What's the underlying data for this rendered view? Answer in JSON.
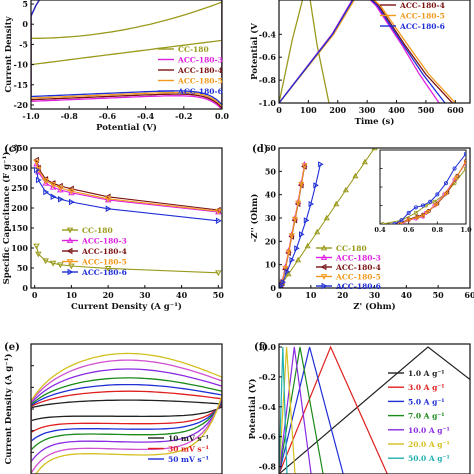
{
  "chart_data": [
    {
      "id": "a",
      "panel_label": "",
      "type": "line",
      "xlabel": "Potential (V)",
      "ylabel": "Current Density",
      "xlim": [
        -1.0,
        0.0
      ],
      "ylim": [
        -21,
        6
      ],
      "xticks": [
        -1.0,
        -0.8,
        -0.6,
        -0.4,
        -0.2,
        0.0
      ],
      "xtick_labels": [
        "-1.0",
        "-0.8",
        "-0.6",
        "-0.4",
        "-0.2",
        "0.0"
      ],
      "yticks": [
        -20,
        -15,
        -10,
        -5,
        0,
        5
      ],
      "ytick_labels": [
        "-20",
        "-15",
        "-10",
        "-5",
        "0",
        "5"
      ],
      "legend_position": "lower-right",
      "series": [
        {
          "name": "CC-180",
          "color": "#9a9a1c",
          "marker": "none",
          "values_top": [
            6,
            6,
            6,
            6,
            6,
            6
          ],
          "values_bottom": [
            -10,
            -7,
            -6,
            -5,
            -4,
            -3
          ]
        },
        {
          "name": "ACC-180-3",
          "color": "#e020e0",
          "marker": "none",
          "values_top": [
            5,
            14,
            18,
            20,
            22,
            24
          ],
          "values_bottom": [
            -19.5,
            -20,
            -20,
            -20,
            -20,
            -20
          ]
        },
        {
          "name": "ACC-180-4",
          "color": "#7a1212",
          "marker": "none",
          "values_top": [
            5,
            14,
            18,
            20,
            22,
            24
          ],
          "values_bottom": [
            -19,
            -19.5,
            -19.5,
            -19.5,
            -19.5,
            -19.5
          ]
        },
        {
          "name": "ACC-180-5",
          "color": "#f29a1e",
          "marker": "none",
          "values_top": [
            5,
            14,
            18,
            20,
            22,
            24
          ],
          "values_bottom": [
            -18.5,
            -19,
            -19,
            -19,
            -19,
            -19
          ]
        },
        {
          "name": "ACC-180-6",
          "color": "#1f2fd6",
          "marker": "none",
          "values_top": [
            5,
            14,
            18,
            20,
            22,
            24
          ],
          "values_bottom": [
            -18,
            -18.5,
            -18.5,
            -18.5,
            -18.5,
            -18.5
          ]
        }
      ]
    },
    {
      "id": "b",
      "panel_label": "",
      "type": "line",
      "xlabel": "Time (s)",
      "ylabel": "Potential (V",
      "xlim": [
        0,
        650
      ],
      "ylim": [
        -1.0,
        -0.1
      ],
      "xticks": [
        0,
        100,
        200,
        300,
        400,
        500,
        600
      ],
      "xtick_labels": [
        "0",
        "100",
        "200",
        "300",
        "400",
        "500",
        "600"
      ],
      "yticks": [
        -1.0,
        -0.8,
        -0.6,
        -0.4
      ],
      "ytick_labels": [
        "-1.0",
        "-0.8",
        "-0.6",
        "-0.4"
      ],
      "legend_position": "top-right",
      "legend_entries": [
        "ACC-180-4",
        "ACC-180-5",
        "ACC-180-6"
      ],
      "series": [
        {
          "name": "CC-180",
          "color": "#9a9a1c",
          "x": [
            0,
            45,
            90,
            100,
            130,
            170
          ],
          "y": [
            -1.0,
            -0.45,
            0.0,
            0.0,
            -0.5,
            -1.0
          ]
        },
        {
          "name": "ACC-180-3",
          "color": "#e020e0",
          "x": [
            0,
            90,
            180,
            272,
            330,
            420,
            478,
            545
          ],
          "y": [
            -1.0,
            -0.7,
            -0.4,
            0.0,
            -0.15,
            -0.5,
            -0.75,
            -1.0
          ]
        },
        {
          "name": "ACC-180-4",
          "color": "#7a1212",
          "x": [
            0,
            92,
            184,
            276,
            340,
            430,
            500,
            590
          ],
          "y": [
            -1.0,
            -0.7,
            -0.4,
            0.0,
            -0.15,
            -0.5,
            -0.75,
            -1.0
          ]
        },
        {
          "name": "ACC-180-5",
          "color": "#f29a1e",
          "x": [
            0,
            93,
            186,
            279,
            345,
            440,
            510,
            600
          ],
          "y": [
            -1.0,
            -0.7,
            -0.4,
            0.0,
            -0.15,
            -0.5,
            -0.75,
            -1.0
          ]
        },
        {
          "name": "ACC-180-6",
          "color": "#1f2fd6",
          "x": [
            0,
            91,
            182,
            274,
            335,
            425,
            490,
            565
          ],
          "y": [
            -1.0,
            -0.7,
            -0.4,
            0.0,
            -0.15,
            -0.5,
            -0.75,
            -1.0
          ]
        }
      ]
    },
    {
      "id": "c",
      "panel_label": "(c)",
      "type": "line",
      "xlabel": "Current Density (A g⁻¹)",
      "ylabel": "Specific Capacitance (F g⁻¹)",
      "xlim": [
        -1,
        51
      ],
      "ylim": [
        0,
        350
      ],
      "xticks": [
        0,
        10,
        20,
        30,
        40,
        50
      ],
      "xtick_labels": [
        "0",
        "10",
        "20",
        "30",
        "40",
        "50"
      ],
      "yticks": [
        0,
        50,
        100,
        150,
        200,
        250,
        300,
        350
      ],
      "ytick_labels": [
        "0",
        "50",
        "100",
        "150",
        "200",
        "250",
        "300",
        "350"
      ],
      "legend_position": "lower-left",
      "x": [
        0.5,
        1,
        3,
        5,
        7,
        10,
        20,
        50
      ],
      "series": [
        {
          "name": "CC-180",
          "color": "#9a9a1c",
          "marker": "tri-down",
          "values": [
            105,
            85,
            68,
            62,
            58,
            55,
            49,
            38
          ]
        },
        {
          "name": "ACC-180-3",
          "color": "#e020e0",
          "marker": "tri-up",
          "values": [
            310,
            290,
            262,
            252,
            245,
            238,
            220,
            190
          ]
        },
        {
          "name": "ACC-180-4",
          "color": "#7a1212",
          "marker": "tri-left",
          "values": [
            320,
            300,
            272,
            262,
            255,
            248,
            228,
            195
          ]
        },
        {
          "name": "ACC-180-5",
          "color": "#f29a1e",
          "marker": "tri-down",
          "values": [
            315,
            296,
            268,
            258,
            250,
            242,
            223,
            192
          ]
        },
        {
          "name": "ACC-180-6",
          "color": "#1f2fd6",
          "marker": "tri-right",
          "values": [
            295,
            270,
            240,
            228,
            222,
            215,
            198,
            168
          ]
        }
      ]
    },
    {
      "id": "d",
      "panel_label": "(d)",
      "type": "scatter",
      "xlabel": "Z' (Ohm)",
      "ylabel": "-Z'' (Ohm)",
      "xlim": [
        0,
        60
      ],
      "ylim": [
        0,
        60
      ],
      "xticks": [
        0,
        10,
        20,
        30,
        40,
        50,
        60
      ],
      "xtick_labels": [
        "0",
        "10",
        "20",
        "30",
        "40",
        "50",
        "60"
      ],
      "yticks": [
        0,
        10,
        20,
        30,
        40,
        50,
        60
      ],
      "ytick_labels": [
        "0",
        "10",
        "20",
        "30",
        "40",
        "50",
        "60"
      ],
      "legend_position": "lower-right",
      "series": [
        {
          "name": "CC-180",
          "color": "#9a9a1c",
          "marker": "tri-up",
          "x": [
            0.4,
            1,
            3,
            6,
            9,
            12,
            15,
            18,
            21,
            24,
            27,
            30
          ],
          "y": [
            0,
            2,
            6,
            12,
            18,
            24,
            30,
            36,
            42,
            48,
            54,
            60
          ]
        },
        {
          "name": "ACC-180-3",
          "color": "#e020e0",
          "marker": "tri-up",
          "x": [
            0.4,
            0.6,
            1,
            2,
            3,
            4,
            5,
            6,
            7,
            8
          ],
          "y": [
            0,
            1,
            3,
            9,
            16,
            23,
            30,
            37,
            45,
            53
          ]
        },
        {
          "name": "ACC-180-4",
          "color": "#7a1212",
          "marker": "tri-left",
          "x": [
            0.4,
            0.6,
            1,
            2,
            3,
            4,
            5,
            6,
            7,
            8
          ],
          "y": [
            0,
            1,
            2.5,
            8,
            15,
            22,
            29,
            36,
            44,
            52
          ]
        },
        {
          "name": "ACC-180-5",
          "color": "#f29a1e",
          "marker": "tri-down",
          "x": [
            0.4,
            0.6,
            1,
            2,
            3,
            4,
            5,
            6,
            7,
            8
          ],
          "y": [
            0,
            1,
            2.7,
            8.5,
            15.5,
            22.5,
            29.5,
            36.5,
            44.5,
            52.5
          ]
        },
        {
          "name": "ACC-180-6",
          "color": "#1f2fd6",
          "marker": "tri-right",
          "x": [
            0.4,
            0.7,
            1.2,
            2.5,
            4,
            5.5,
            7,
            8.5,
            10,
            11.5,
            13
          ],
          "y": [
            0,
            1,
            2.5,
            7,
            12,
            17,
            23,
            29,
            36,
            44,
            53
          ]
        }
      ],
      "inset": {
        "xlim": [
          0.4,
          1.0
        ],
        "ylim": [
          0,
          0.4
        ],
        "xticks": [
          0.4,
          0.6,
          0.8,
          1.0
        ],
        "xtick_labels": [
          "0.4",
          "0.6",
          "0.8",
          "1.0"
        ],
        "yticks": [
          0.0,
          0.1,
          0.2,
          0.3,
          0.4
        ],
        "series": [
          {
            "name": "CC-180",
            "color": "#9a9a1c",
            "x": [
              0.42,
              0.55,
              0.65,
              0.72,
              0.78,
              0.85,
              0.92,
              1.0
            ],
            "y": [
              0.0,
              0.02,
              0.06,
              0.1,
              0.12,
              0.16,
              0.22,
              0.3
            ]
          },
          {
            "name": "ACC-180-3",
            "color": "#e020e0",
            "x": [
              0.55,
              0.6,
              0.65,
              0.7,
              0.72,
              0.78,
              0.85,
              0.92,
              1.0
            ],
            "y": [
              0.0,
              0.02,
              0.03,
              0.04,
              0.06,
              0.1,
              0.16,
              0.24,
              0.33
            ]
          },
          {
            "name": "ACC-180-4",
            "color": "#7a1212",
            "x": [
              0.53,
              0.6,
              0.66,
              0.7,
              0.74,
              0.8,
              0.87,
              0.94,
              1.0
            ],
            "y": [
              0.0,
              0.025,
              0.04,
              0.05,
              0.07,
              0.11,
              0.17,
              0.26,
              0.34
            ]
          },
          {
            "name": "ACC-180-5",
            "color": "#f29a1e",
            "x": [
              0.54,
              0.6,
              0.66,
              0.7,
              0.73,
              0.79,
              0.86,
              0.93,
              1.0
            ],
            "y": [
              0.0,
              0.022,
              0.035,
              0.045,
              0.065,
              0.105,
              0.165,
              0.25,
              0.335
            ]
          },
          {
            "name": "ACC-180-6",
            "color": "#1f2fd6",
            "x": [
              0.5,
              0.55,
              0.6,
              0.65,
              0.7,
              0.75,
              0.8,
              0.86,
              0.92,
              1.0
            ],
            "y": [
              0.0,
              0.02,
              0.06,
              0.09,
              0.1,
              0.12,
              0.16,
              0.22,
              0.3,
              0.38
            ]
          }
        ]
      }
    },
    {
      "id": "e",
      "panel_label": "(e)",
      "type": "line",
      "xlabel": "",
      "ylabel": "Current Density (A g⁻¹)",
      "xlim": [
        -1.0,
        0.0
      ],
      "ylim": [
        -30,
        30
      ],
      "yticks": [
        -20,
        -10,
        0,
        10,
        20
      ],
      "ytick_labels": [
        "",
        "",
        "",
        "",
        ""
      ],
      "legend_position": "lower-right",
      "legend_entries": [
        "10 mV s⁻¹",
        "30 mV s⁻¹",
        "50 mV s⁻¹"
      ],
      "series": [
        {
          "name": "10 mV s⁻¹",
          "color": "#222222",
          "amp": 4
        },
        {
          "name": "30 mV s⁻¹",
          "color": "#e02020",
          "amp": 8
        },
        {
          "name": "50 mV s⁻¹",
          "color": "#1f2fd6",
          "amp": 11
        },
        {
          "name": "",
          "color": "#1a8a1a",
          "amp": 14
        },
        {
          "name": "",
          "color": "#8a2be2",
          "amp": 18
        },
        {
          "name": "",
          "color": "#d050d0",
          "amp": 22
        },
        {
          "name": "",
          "color": "#d4c020",
          "amp": 25
        }
      ]
    },
    {
      "id": "f",
      "panel_label": "(f)",
      "type": "line",
      "xlabel": "",
      "ylabel": "Potential (V)",
      "xlim": [
        0,
        100
      ],
      "ylim": [
        -0.85,
        0.02
      ],
      "yticks": [
        0.0,
        -0.2,
        -0.4,
        -0.6,
        -0.8
      ],
      "ytick_labels": [
        "0.0",
        "-0.2",
        "-0.4",
        "-0.6",
        "-0.8"
      ],
      "legend_position": "top-right",
      "series": [
        {
          "name": "1.0 A g⁻¹",
          "color": "#222222",
          "peak": 78
        },
        {
          "name": "3.0 A g⁻¹",
          "color": "#e02020",
          "peak": 27
        },
        {
          "name": "5.0 A g⁻¹",
          "color": "#1f2fd6",
          "peak": 16
        },
        {
          "name": "7.0 A g⁻¹",
          "color": "#1a8a1a",
          "peak": 11
        },
        {
          "name": "10.0 A g⁻¹",
          "color": "#8a2be2",
          "peak": 8
        },
        {
          "name": "20.0 A g⁻¹",
          "color": "#d4c020",
          "peak": 4
        },
        {
          "name": "50.0 A g⁻¹",
          "color": "#20b0b0",
          "peak": 2
        }
      ]
    }
  ]
}
